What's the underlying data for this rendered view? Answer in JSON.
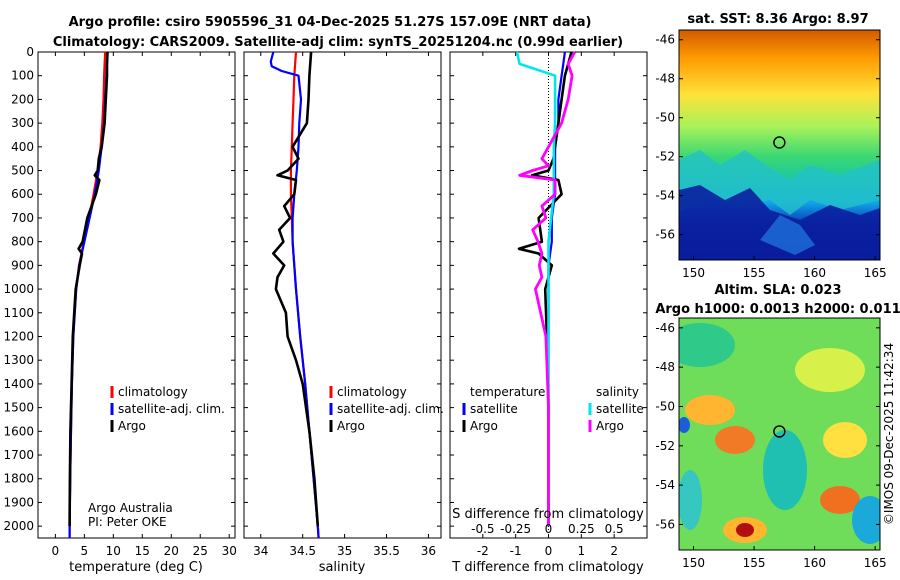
{
  "title": {
    "line1": "Argo profile: csiro 5905596_31 04-Dec-2025 51.27S 157.09E (NRT data)",
    "line2": "Climatology: CARS2009. Satellite-adj clim: synTS_20251204.nc (0.99d earlier)"
  },
  "depth_ticks": [
    "0",
    "100",
    "200",
    "300",
    "400",
    "500",
    "600",
    "700",
    "800",
    "900",
    "1000",
    "1100",
    "1200",
    "1300",
    "1400",
    "1500",
    "1600",
    "1700",
    "1800",
    "1900",
    "2000"
  ],
  "credit": {
    "line1": "Argo Australia",
    "line2": "PI: Peter OKE"
  },
  "colors": {
    "climatology": "#ff0000",
    "satellite": "#0000ff",
    "argo": "#000000",
    "sat_salinity": "#00e5ee",
    "argo_salinity": "#ff00ff"
  },
  "chart_data": [
    {
      "type": "line",
      "name": "temperature-profile",
      "xlabel": "temperature (deg C)",
      "xlim": [
        -3,
        31
      ],
      "ylim": [
        2050,
        0
      ],
      "x_ticks": [
        "0",
        "5",
        "10",
        "15",
        "20",
        "25",
        "30"
      ],
      "series": [
        {
          "name": "climatology",
          "depth": [
            0,
            50,
            100,
            200,
            300,
            400,
            500,
            600,
            700,
            800,
            900,
            1000,
            1200,
            1400,
            1600,
            1800,
            2000,
            2050
          ],
          "values": [
            8.6,
            8.5,
            8.4,
            8.3,
            8.1,
            7.8,
            7.3,
            6.6,
            5.8,
            4.9,
            4.1,
            3.6,
            3.1,
            2.85,
            2.7,
            2.55,
            2.45,
            2.45
          ]
        },
        {
          "name": "satellite-adj. clim.",
          "depth": [
            0,
            50,
            100,
            200,
            300,
            400,
            500,
            600,
            700,
            800,
            900,
            1000,
            1200,
            1400,
            1600,
            1800,
            2000,
            2050
          ],
          "values": [
            9.0,
            8.9,
            8.8,
            8.6,
            8.4,
            8.0,
            7.5,
            6.8,
            5.9,
            5.0,
            4.1,
            3.6,
            3.1,
            2.85,
            2.7,
            2.55,
            2.45,
            2.45
          ]
        },
        {
          "name": "Argo",
          "depth": [
            0,
            50,
            100,
            150,
            200,
            300,
            400,
            450,
            500,
            520,
            540,
            600,
            700,
            800,
            830,
            850,
            900,
            1000,
            1200,
            1400,
            1600,
            1800,
            2000
          ],
          "values": [
            9.0,
            8.9,
            8.9,
            8.8,
            8.7,
            8.5,
            8.0,
            7.5,
            7.3,
            6.8,
            7.6,
            7.0,
            5.5,
            4.7,
            4.0,
            4.6,
            4.2,
            3.5,
            3.0,
            2.8,
            2.6,
            2.5,
            2.45
          ]
        }
      ],
      "legend": [
        "climatology",
        "satellite-adj. clim.",
        "Argo"
      ]
    },
    {
      "type": "line",
      "name": "salinity-profile",
      "xlabel": "salinity",
      "xlim": [
        33.8,
        36.15
      ],
      "ylim": [
        2050,
        0
      ],
      "x_ticks": [
        "34",
        "34.5",
        "35",
        "35.5",
        "36"
      ],
      "series": [
        {
          "name": "climatology",
          "depth": [
            0,
            100,
            200,
            300,
            400,
            500,
            600,
            700,
            800,
            900,
            1000,
            1200,
            1400,
            1600,
            1800,
            2000,
            2050
          ],
          "values": [
            34.42,
            34.4,
            34.39,
            34.38,
            34.37,
            34.36,
            34.36,
            34.37,
            34.38,
            34.4,
            34.42,
            34.47,
            34.53,
            34.58,
            34.63,
            34.68,
            34.69
          ]
        },
        {
          "name": "satellite-adj. clim.",
          "depth": [
            0,
            40,
            60,
            80,
            100,
            200,
            300,
            400,
            500,
            600,
            700,
            800,
            900,
            1000,
            1200,
            1400,
            1600,
            1800,
            2000,
            2050
          ],
          "values": [
            34.15,
            34.12,
            34.13,
            34.25,
            34.45,
            34.48,
            34.46,
            34.45,
            34.43,
            34.4,
            34.38,
            34.38,
            34.4,
            34.42,
            34.47,
            34.53,
            34.58,
            34.63,
            34.68,
            34.69
          ]
        },
        {
          "name": "Argo",
          "depth": [
            0,
            100,
            200,
            300,
            400,
            450,
            500,
            520,
            540,
            600,
            650,
            700,
            750,
            800,
            850,
            900,
            950,
            1000,
            1100,
            1200,
            1300,
            1400,
            1600,
            1800,
            2000
          ],
          "values": [
            34.6,
            34.58,
            34.57,
            34.55,
            34.38,
            34.45,
            34.32,
            34.2,
            34.42,
            34.4,
            34.28,
            34.35,
            34.22,
            34.27,
            34.15,
            34.28,
            34.2,
            34.18,
            34.3,
            34.32,
            34.42,
            34.5,
            34.58,
            34.64,
            34.68
          ]
        }
      ],
      "legend": [
        "climatology",
        "satellite-adj. clim.",
        "Argo"
      ]
    },
    {
      "type": "line",
      "name": "difference-profile",
      "xlabel": "T difference from climatology",
      "xlabel_top": "S difference from climatology",
      "xlim": [
        -3,
        3
      ],
      "xlim_salinity": [
        -0.75,
        0.75
      ],
      "ylim": [
        2050,
        0
      ],
      "x_ticks": [
        "-2",
        "-1",
        "0",
        "1",
        "2"
      ],
      "x_ticks_top": [
        "-0.5",
        "-0.25",
        "0",
        "0.25",
        "0.5"
      ],
      "legend_headers": {
        "temperature": "temperature",
        "salinity": "salinity"
      },
      "series": [
        {
          "name": "temperature satellite",
          "depth": [
            0,
            50,
            100,
            200,
            300,
            400,
            500,
            600,
            700,
            800,
            900,
            1000,
            1200,
            1500,
            2000
          ],
          "values": [
            0.5,
            0.45,
            0.4,
            0.3,
            0.3,
            0.2,
            0.2,
            0.2,
            0.1,
            0.1,
            0.0,
            0.0,
            0.0,
            0.0,
            0.0
          ]
        },
        {
          "name": "temperature Argo",
          "depth": [
            0,
            50,
            100,
            200,
            300,
            400,
            450,
            500,
            520,
            540,
            600,
            700,
            800,
            830,
            850,
            900,
            1000,
            1200,
            1500,
            2000
          ],
          "values": [
            0.7,
            0.6,
            0.5,
            0.4,
            0.3,
            0.2,
            0.15,
            0.0,
            -0.5,
            0.3,
            0.4,
            -0.3,
            -0.2,
            -0.9,
            -0.3,
            0.1,
            -0.1,
            -0.05,
            0.0,
            0.0
          ]
        },
        {
          "name": "salinity satellite",
          "depth": [
            0,
            50,
            100,
            200,
            300,
            400,
            500,
            600,
            700,
            800,
            900,
            1000,
            1200,
            1500,
            2000
          ],
          "values": [
            -0.24,
            -0.22,
            0.05,
            0.05,
            0.05,
            0.04,
            0.04,
            0.04,
            0.02,
            0.0,
            0.0,
            0.0,
            0.0,
            0.0,
            0.0
          ]
        },
        {
          "name": "salinity Argo",
          "depth": [
            0,
            50,
            100,
            200,
            300,
            400,
            450,
            480,
            500,
            520,
            540,
            600,
            650,
            700,
            750,
            800,
            850,
            900,
            950,
            1000,
            1200,
            1500,
            2000
          ],
          "values": [
            0.2,
            0.15,
            0.18,
            0.15,
            0.1,
            0.0,
            -0.05,
            0.0,
            -0.12,
            -0.22,
            0.05,
            0.05,
            -0.05,
            -0.02,
            -0.12,
            -0.08,
            -0.05,
            -0.07,
            -0.05,
            -0.1,
            -0.02,
            0.0,
            0.0
          ]
        }
      ],
      "legend": [
        "satellite",
        "Argo",
        "satellite",
        "Argo"
      ]
    }
  ],
  "sst_map": {
    "title": "sat. SST: 8.36 Argo: 8.97",
    "lon_ticks": [
      "150",
      "155",
      "160",
      "165"
    ],
    "lat_ticks": [
      "-46",
      "-48",
      "-50",
      "-52",
      "-54",
      "-56"
    ],
    "lon_range": [
      148.8,
      165.4
    ],
    "lat_range": [
      -57.3,
      -45.5
    ],
    "argo_position": {
      "lon": 157.09,
      "lat": -51.27
    }
  },
  "sla_map": {
    "title1": "Altim. SLA: 0.023",
    "title2": "Argo h1000: 0.0013 h2000: 0.011",
    "lon_ticks": [
      "150",
      "155",
      "160",
      "165"
    ],
    "lat_ticks": [
      "-46",
      "-48",
      "-50",
      "-52",
      "-54",
      "-56"
    ],
    "lon_range": [
      148.8,
      165.4
    ],
    "lat_range": [
      -57.3,
      -45.5
    ],
    "argo_position": {
      "lon": 157.09,
      "lat": -51.27
    }
  },
  "footer": "©IMOS 09-Dec-2025 11:42:34"
}
